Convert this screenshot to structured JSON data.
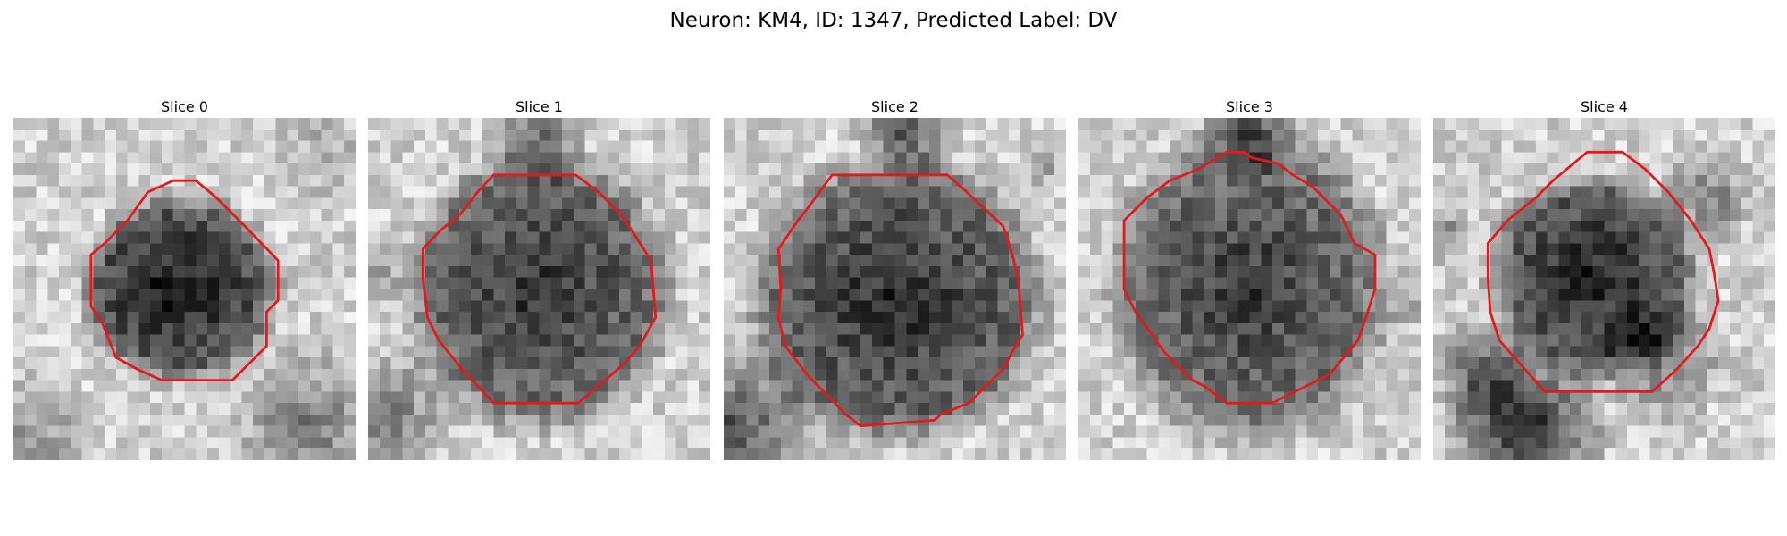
{
  "figure": {
    "title": "Neuron: KM4, ID: 1347, Predicted Label: DV"
  },
  "slices": [
    {
      "title": "Slice 0",
      "contour_color": "#e31a1c"
    },
    {
      "title": "Slice 1",
      "contour_color": "#e31a1c"
    },
    {
      "title": "Slice 2",
      "contour_color": "#e31a1c"
    },
    {
      "title": "Slice 3",
      "contour_color": "#e31a1c"
    },
    {
      "title": "Slice 4",
      "contour_color": "#e31a1c"
    }
  ]
}
